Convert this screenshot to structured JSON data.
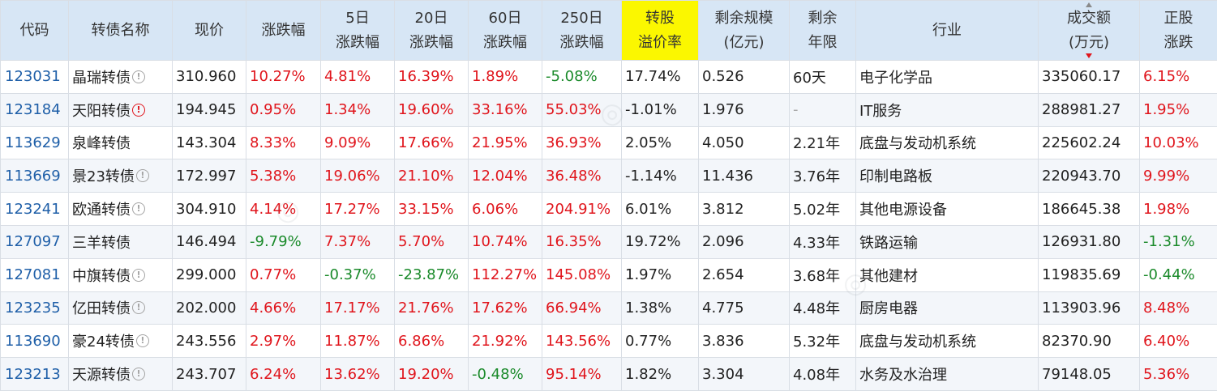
{
  "headers": {
    "code": "代码",
    "name": "转债名称",
    "price": "现价",
    "chg": "涨跌幅",
    "chg5_l1": "5日",
    "chg5_l2": "涨跌幅",
    "chg20_l1": "20日",
    "chg20_l2": "涨跌幅",
    "chg60_l1": "60日",
    "chg60_l2": "涨跌幅",
    "chg250_l1": "250日",
    "chg250_l2": "涨跌幅",
    "premium_l1": "转股",
    "premium_l2": "溢价率",
    "scale_l1": "剩余规模",
    "scale_l2": "(亿元)",
    "years_l1": "剩余",
    "years_l2": "年限",
    "industry": "行业",
    "amount_l1": "成交额",
    "amount_l2": "(万元)",
    "stock_l1": "正股",
    "stock_l2": "涨跌"
  },
  "colors": {
    "header_bg": "#d7e6f5",
    "highlight": "#fbf700",
    "up": "#e0151c",
    "down": "#1a8a2a",
    "code": "#1f5fa8"
  },
  "rows": [
    {
      "code": "123031",
      "name": "晶瑞转债",
      "icon": "info",
      "price": "310.960",
      "chg": "10.27%",
      "chg5": "4.81%",
      "chg20": "16.39%",
      "chg60": "1.89%",
      "chg250": "-5.08%",
      "premium": "17.74%",
      "scale": "0.526",
      "years": "60天",
      "industry": "电子化学品",
      "amount": "335060.17",
      "stock": "6.15%"
    },
    {
      "code": "123184",
      "name": "天阳转债",
      "icon": "warn",
      "price": "194.945",
      "chg": "0.95%",
      "chg5": "1.34%",
      "chg20": "19.60%",
      "chg60": "33.16%",
      "chg250": "55.03%",
      "premium": "-1.01%",
      "scale": "1.976",
      "years": "-",
      "industry": "IT服务",
      "amount": "288981.27",
      "stock": "1.95%"
    },
    {
      "code": "113629",
      "name": "泉峰转债",
      "icon": "",
      "price": "143.304",
      "chg": "8.33%",
      "chg5": "9.09%",
      "chg20": "17.66%",
      "chg60": "21.95%",
      "chg250": "36.93%",
      "premium": "2.05%",
      "scale": "4.050",
      "years": "2.21年",
      "industry": "底盘与发动机系统",
      "amount": "225602.24",
      "stock": "10.03%"
    },
    {
      "code": "113669",
      "name": "景23转债",
      "icon": "info",
      "price": "172.997",
      "chg": "5.38%",
      "chg5": "19.06%",
      "chg20": "21.10%",
      "chg60": "12.04%",
      "chg250": "36.48%",
      "premium": "-1.14%",
      "scale": "11.436",
      "years": "3.76年",
      "industry": "印制电路板",
      "amount": "220943.70",
      "stock": "9.99%"
    },
    {
      "code": "123241",
      "name": "欧通转债",
      "icon": "info",
      "price": "304.910",
      "chg": "4.14%",
      "chg5": "17.27%",
      "chg20": "33.15%",
      "chg60": "6.06%",
      "chg250": "204.91%",
      "premium": "6.01%",
      "scale": "3.812",
      "years": "5.02年",
      "industry": "其他电源设备",
      "amount": "186645.38",
      "stock": "1.98%"
    },
    {
      "code": "127097",
      "name": "三羊转债",
      "icon": "",
      "price": "146.494",
      "chg": "-9.79%",
      "chg5": "7.37%",
      "chg20": "5.70%",
      "chg60": "10.74%",
      "chg250": "16.35%",
      "premium": "19.72%",
      "scale": "2.096",
      "years": "4.33年",
      "industry": "铁路运输",
      "amount": "126931.80",
      "stock": "-1.31%"
    },
    {
      "code": "127081",
      "name": "中旗转债",
      "icon": "info",
      "price": "299.000",
      "chg": "0.77%",
      "chg5": "-0.37%",
      "chg20": "-23.87%",
      "chg60": "112.27%",
      "chg250": "145.08%",
      "premium": "1.97%",
      "scale": "2.654",
      "years": "3.68年",
      "industry": "其他建材",
      "amount": "119835.69",
      "stock": "-0.44%"
    },
    {
      "code": "123235",
      "name": "亿田转债",
      "icon": "info",
      "price": "202.000",
      "chg": "4.66%",
      "chg5": "17.17%",
      "chg20": "21.76%",
      "chg60": "17.62%",
      "chg250": "66.94%",
      "premium": "1.38%",
      "scale": "4.775",
      "years": "4.48年",
      "industry": "厨房电器",
      "amount": "113903.96",
      "stock": "8.48%"
    },
    {
      "code": "113690",
      "name": "豪24转债",
      "icon": "info",
      "price": "243.556",
      "chg": "2.97%",
      "chg5": "11.87%",
      "chg20": "6.86%",
      "chg60": "21.92%",
      "chg250": "143.56%",
      "premium": "0.77%",
      "scale": "3.836",
      "years": "5.32年",
      "industry": "底盘与发动机系统",
      "amount": "82370.90",
      "stock": "6.40%"
    },
    {
      "code": "123213",
      "name": "天源转债",
      "icon": "info",
      "price": "243.707",
      "chg": "6.24%",
      "chg5": "13.62%",
      "chg20": "19.20%",
      "chg60": "-0.48%",
      "chg250": "95.14%",
      "premium": "1.82%",
      "scale": "3.304",
      "years": "4.08年",
      "industry": "水务及水治理",
      "amount": "79148.05",
      "stock": "5.36%"
    }
  ]
}
